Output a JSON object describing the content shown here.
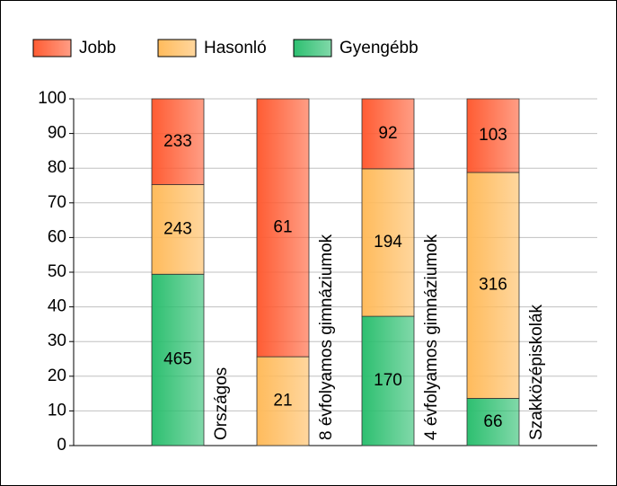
{
  "chart_data": {
    "type": "bar",
    "stacking": "percent",
    "categories": [
      "Országos",
      "8 évfolyamos gimnáziumok",
      "4 évfolyamos gimnáziumok",
      "Szakközépiskolák"
    ],
    "series": [
      {
        "name": "Gyengébb",
        "color": "#2dbf70",
        "values": [
          465,
          null,
          170,
          66
        ]
      },
      {
        "name": "Hasonló",
        "color": "#ffbb5c",
        "values": [
          243,
          21,
          194,
          316
        ]
      },
      {
        "name": "Jobb",
        "color": "#ff5c33",
        "values": [
          233,
          61,
          92,
          103
        ]
      }
    ],
    "legend_order": [
      2,
      1,
      0
    ],
    "ylim": [
      0,
      100
    ],
    "yticks": [
      0,
      10,
      20,
      30,
      40,
      50,
      60,
      70,
      80,
      90,
      100
    ],
    "grid": true
  }
}
